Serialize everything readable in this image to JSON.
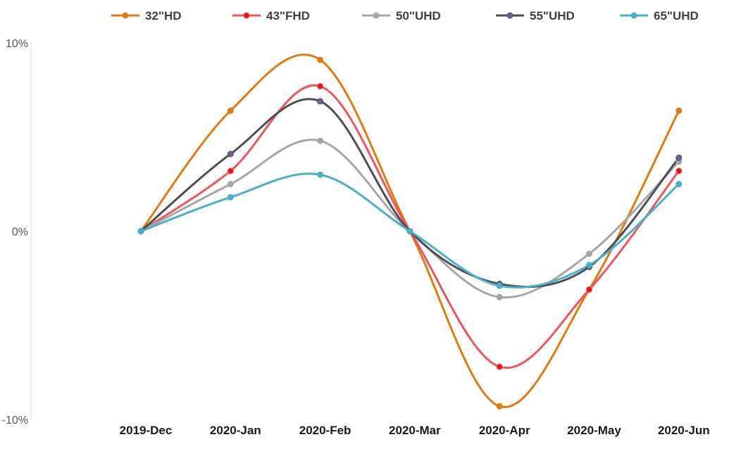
{
  "chart_data": {
    "type": "line",
    "title": "",
    "xlabel": "",
    "ylabel": "",
    "categories": [
      "2019-Dec",
      "2020-Jan",
      "2020-Feb",
      "2020-Mar",
      "2020-Apr",
      "2020-May",
      "2020-Jun"
    ],
    "ylim": [
      -10,
      10
    ],
    "yticks": [
      10,
      0,
      -10
    ],
    "ytick_labels": [
      "10%",
      "0%",
      "-10%"
    ],
    "grid": false,
    "smooth": true,
    "legend": "top",
    "series": [
      {
        "name": "32\"HD",
        "color": "#E07B10",
        "values": [
          0,
          6.4,
          9.1,
          0,
          -9.3,
          -3.1,
          6.4
        ]
      },
      {
        "name": "43\"FHD",
        "color": "#F0555A",
        "marker_color": "#E8141C",
        "values": [
          0,
          3.2,
          7.7,
          0,
          -7.2,
          -3.1,
          3.2
        ]
      },
      {
        "name": "50\"UHD",
        "color": "#A6A6A6",
        "values": [
          0,
          2.5,
          4.8,
          0,
          -3.5,
          -1.2,
          3.7
        ]
      },
      {
        "name": "55\"UHD",
        "color": "#4D4D52",
        "marker_color": "#7A5C92",
        "values": [
          0,
          4.1,
          6.9,
          0,
          -2.8,
          -1.9,
          3.9
        ]
      },
      {
        "name": "65\"UHD",
        "color": "#4BAFC8",
        "values": [
          0,
          1.8,
          3.0,
          0,
          -2.9,
          -1.8,
          2.5
        ]
      }
    ]
  }
}
